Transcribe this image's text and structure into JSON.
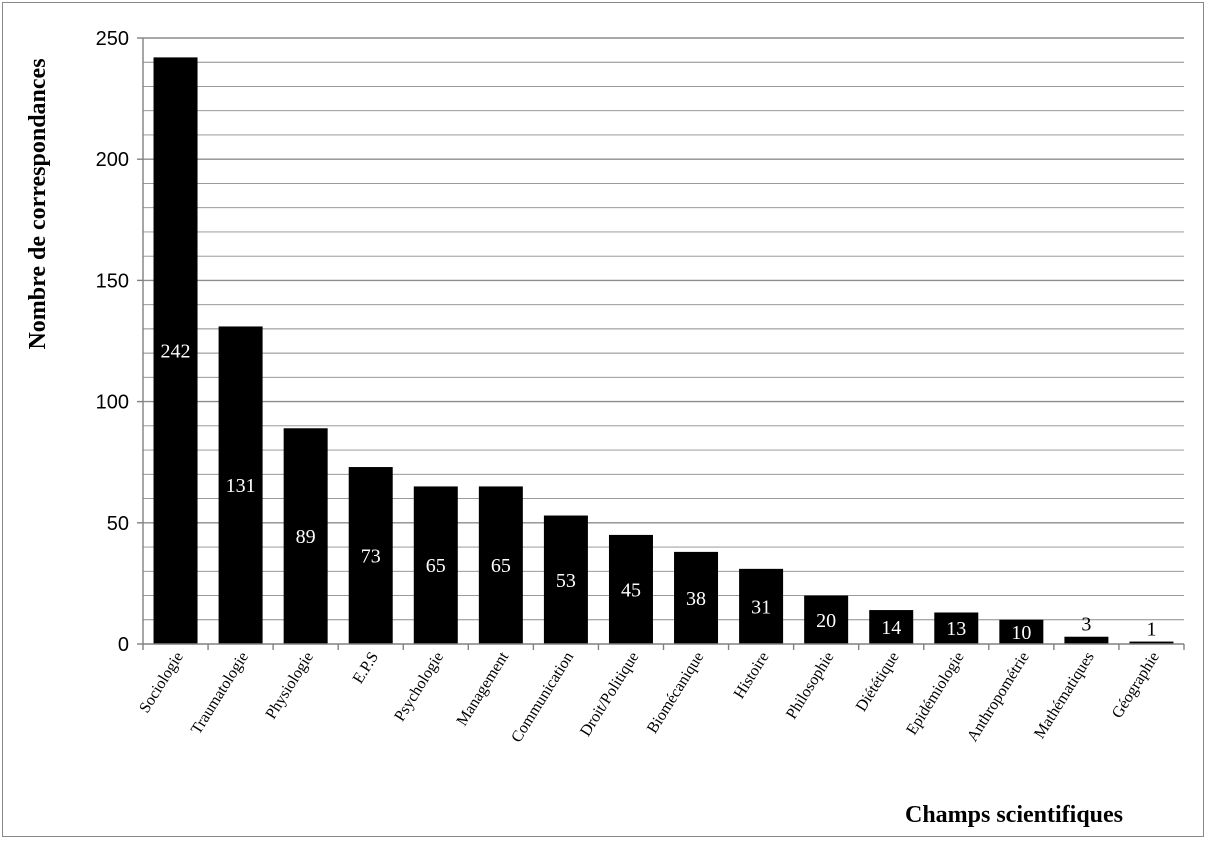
{
  "chart_data": {
    "type": "bar",
    "categories": [
      "Sociologie",
      "Traumatologie",
      "Physiologie",
      "E.P.S",
      "Psychologie",
      "Management",
      "Communication",
      "Droit/Politique",
      "Biomécanique",
      "Histoire",
      "Philosophie",
      "Diététique",
      "Epidémiologie",
      "Anthropométrie",
      "Mathématiques",
      "Géographie"
    ],
    "values": [
      242,
      131,
      89,
      73,
      65,
      65,
      53,
      45,
      38,
      31,
      20,
      14,
      13,
      10,
      3,
      1
    ],
    "data_labels": [
      "242",
      "131",
      "89",
      "73",
      "65",
      "65",
      "53",
      "45",
      "38",
      "31",
      "20",
      "14",
      "13",
      "10",
      "3",
      "1"
    ],
    "title": "",
    "xlabel": "Champs scientifiques",
    "ylabel": "Nombre de correspondances",
    "ylim": [
      0,
      250
    ],
    "yticks": [
      0,
      50,
      100,
      150,
      200,
      250
    ],
    "minor_gridline_step": 10,
    "grid": true,
    "legend": "none",
    "colors": {
      "bar": "#000000",
      "label_inside": "#ffffff",
      "label_outside": "#000000",
      "gridline": "#8c8c8c",
      "axis": "#808080"
    }
  }
}
